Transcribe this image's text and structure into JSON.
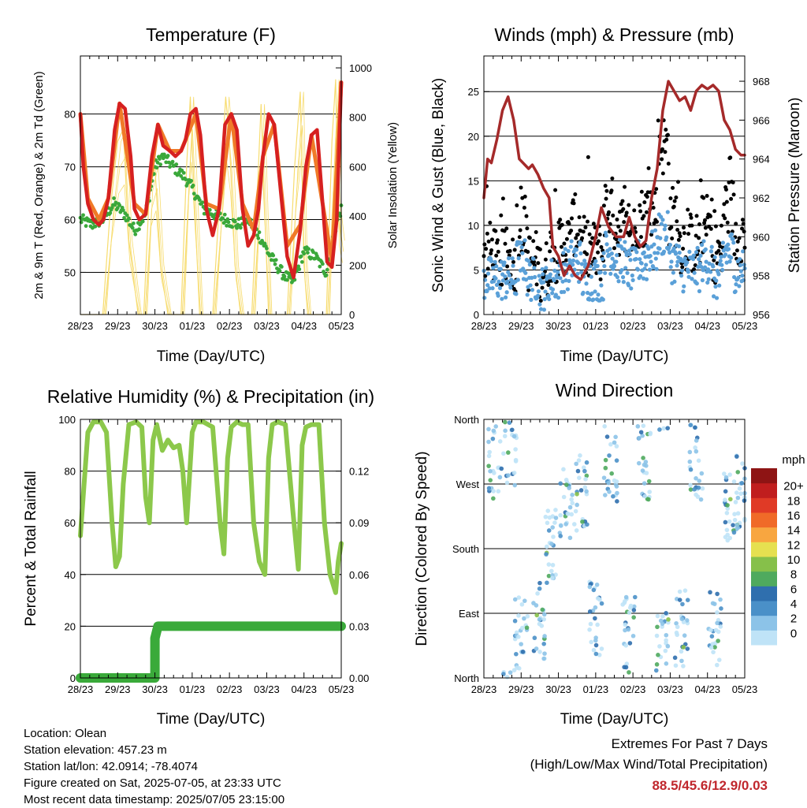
{
  "colors": {
    "temp2m": "#d62020",
    "temp9m": "#f07a28",
    "dewpoint": "#3aa83a",
    "solar": "#f7dc6f",
    "wind": "#5aa0d8",
    "gust": "#000000",
    "pressure": "#a52a2a",
    "rh": "#8cc84b",
    "precip": "#3aaa3a",
    "grid": "#000000",
    "extremes": "#c0272d"
  },
  "time_ticks": [
    "28/23",
    "29/23",
    "30/23",
    "01/23",
    "02/23",
    "03/23",
    "04/23",
    "05/23"
  ],
  "panels": {
    "temperature": {
      "title": "Temperature (F)",
      "xlabel": "Time (Day/UTC)",
      "ylabel_left": "2m & 9m T (Red, Orange) & 2m Td (Green)",
      "ylabel_right": "Solar Insolation (Yellow)",
      "yticks_left": [
        "50",
        "60",
        "70",
        "80"
      ],
      "yticks_right": [
        "0",
        "200",
        "400",
        "600",
        "800",
        "1000"
      ]
    },
    "winds": {
      "title": "Winds (mph) & Pressure (mb)",
      "xlabel": "Time (Day/UTC)",
      "ylabel_left": "Sonic Wind & Gust (Blue, Black)",
      "ylabel_right": "Station Pressure (Maroon)",
      "yticks_left": [
        "0",
        "5",
        "10",
        "15",
        "20",
        "25"
      ],
      "yticks_right": [
        "956",
        "958",
        "960",
        "962",
        "964",
        "966",
        "968"
      ]
    },
    "humidity": {
      "title": "Relative Humidity (%) & Precipitation (in)",
      "xlabel": "Time (Day/UTC)",
      "ylabel_left": "Percent & Total Rainfall",
      "yticks_left": [
        "0",
        "20",
        "40",
        "60",
        "80",
        "100"
      ],
      "yticks_right": [
        "0.00",
        "0.03",
        "0.06",
        "0.09",
        "0.12"
      ]
    },
    "direction": {
      "title": "Wind Direction",
      "xlabel": "Time (Day/UTC)",
      "ylabel_left": "Direction (Colored By Speed)",
      "yticks_left": [
        "North",
        "East",
        "South",
        "West",
        "North"
      ],
      "colorbar_title": "mph",
      "colorbar_labels": [
        "0",
        "2",
        "4",
        "6",
        "8",
        "10",
        "12",
        "14",
        "16",
        "18",
        "20+"
      ],
      "colorbar_colors": [
        "#bfe3f7",
        "#8cc3e8",
        "#4a90c8",
        "#2f6fae",
        "#4faa5e",
        "#86c04a",
        "#e6e050",
        "#f8a640",
        "#f06a28",
        "#e03a26",
        "#c01e1e",
        "#8e1414"
      ]
    }
  },
  "footer": {
    "location": "Location: Olean",
    "elevation": "Station elevation: 457.23 m",
    "latlon": "Station lat/lon: 42.0914; -78.4074",
    "created": "Figure created on Sat, 2025-07-05, at 23:33 UTC",
    "latest": "Most recent data timestamp: 2025/07/05 23:15:00"
  },
  "extremes": {
    "title": "Extremes For Past 7 Days",
    "subtitle": "(High/Low/Max Wind/Total Precipitation)",
    "values": "88.5/45.6/12.9/0.03"
  },
  "chart_data": [
    {
      "type": "line",
      "x_unit": "day",
      "xlim": [
        0,
        7
      ],
      "ylim": [
        42,
        91
      ],
      "y2lim": [
        0,
        1000
      ],
      "series": [
        {
          "key": "temp2m",
          "x": [
            0,
            0.08,
            0.2,
            0.35,
            0.5,
            0.62,
            0.75,
            0.92,
            1.05,
            1.2,
            1.35,
            1.45,
            1.58,
            1.75,
            1.92,
            2.08,
            2.22,
            2.4,
            2.55,
            2.7,
            2.82,
            2.95,
            3.1,
            3.22,
            3.38,
            3.55,
            3.72,
            3.88,
            4.05,
            4.2,
            4.35,
            4.5,
            4.65,
            4.78,
            4.9,
            5.05,
            5.2,
            5.38,
            5.55,
            5.72,
            5.9,
            6.05,
            6.2,
            6.35,
            6.5,
            6.62,
            6.75,
            6.88,
            7.0
          ],
          "y": [
            80,
            70,
            63,
            60,
            59,
            60,
            64,
            77,
            82,
            81,
            72,
            62,
            60,
            61,
            72,
            78,
            74,
            73,
            72,
            73,
            75,
            80,
            81,
            76,
            62,
            57,
            62,
            78,
            80,
            77,
            62,
            55,
            57,
            62,
            72,
            80,
            78,
            65,
            53,
            49,
            58,
            70,
            76,
            77,
            63,
            52,
            51,
            60,
            86
          ]
        },
        {
          "key": "temp9m",
          "x": [
            0,
            0.2,
            0.5,
            0.75,
            1.05,
            1.45,
            1.75,
            2.08,
            2.4,
            2.7,
            3.1,
            3.38,
            3.72,
            4.05,
            4.35,
            4.65,
            4.9,
            5.2,
            5.55,
            5.9,
            6.2,
            6.5,
            6.75,
            7.0
          ],
          "y": [
            80,
            64,
            60,
            64,
            82,
            63,
            61,
            78,
            73,
            73,
            80,
            63,
            62,
            80,
            63,
            58,
            72,
            78,
            55,
            59,
            76,
            63,
            52,
            86
          ]
        },
        {
          "key": "dewpoint",
          "x": [
            0,
            0.3,
            0.6,
            0.9,
            1.2,
            1.45,
            1.75,
            2.0,
            2.2,
            2.5,
            2.8,
            3.0,
            3.3,
            3.6,
            3.9,
            4.2,
            4.5,
            4.8,
            5.1,
            5.4,
            5.7,
            6.0,
            6.3,
            6.6,
            6.9,
            7.0
          ],
          "y": [
            60,
            59,
            60,
            63,
            61,
            58,
            61,
            70,
            72,
            70,
            68,
            66,
            62,
            61,
            60,
            59,
            60,
            57,
            53,
            50,
            48,
            54,
            53,
            50,
            60,
            62
          ]
        },
        {
          "key": "solar",
          "axis": "right",
          "x": [
            0,
            0.6,
            0.8,
            1.0,
            1.15,
            1.3,
            1.55,
            1.7,
            1.85,
            2.0,
            2.15,
            2.35,
            2.7,
            2.85,
            2.95,
            3.05,
            3.2,
            3.35,
            3.55,
            3.75,
            3.9,
            4.0,
            4.15,
            4.3,
            4.6,
            4.75,
            4.85,
            4.95,
            5.05,
            5.2,
            5.35,
            5.55,
            5.75,
            5.9,
            6.0,
            6.1,
            6.25,
            6.35,
            6.6,
            6.75,
            6.85,
            6.92,
            7.0
          ],
          "y": [
            0,
            0,
            420,
            700,
            750,
            300,
            0,
            0,
            500,
            600,
            200,
            0,
            0,
            600,
            880,
            500,
            0,
            0,
            0,
            500,
            880,
            700,
            200,
            0,
            0,
            500,
            850,
            400,
            0,
            0,
            0,
            0,
            600,
            900,
            200,
            0,
            0,
            0,
            0,
            700,
            950,
            400,
            300
          ]
        }
      ]
    },
    {
      "type": "line",
      "x_unit": "day",
      "xlim": [
        0,
        7
      ],
      "ylim": [
        0,
        29
      ],
      "y2lim": [
        956,
        969.3
      ],
      "series": [
        {
          "key": "pressure",
          "axis": "right",
          "x": [
            0,
            0.1,
            0.2,
            0.35,
            0.5,
            0.65,
            0.8,
            0.95,
            1.05,
            1.2,
            1.3,
            1.45,
            1.6,
            1.75,
            1.85,
            2.0,
            2.15,
            2.3,
            2.45,
            2.6,
            2.8,
            3.0,
            3.15,
            3.35,
            3.55,
            3.75,
            3.9,
            4.05,
            4.2,
            4.35,
            4.5,
            4.65,
            4.8,
            4.95,
            5.1,
            5.25,
            5.4,
            5.55,
            5.7,
            5.85,
            6.0,
            6.15,
            6.3,
            6.45,
            6.6,
            6.75,
            6.9,
            7.0
          ],
          "y": [
            962,
            964,
            963.8,
            965,
            966.5,
            967.2,
            966,
            964,
            963.8,
            963.5,
            963.7,
            963.2,
            962.5,
            962,
            959.5,
            959,
            958,
            958.5,
            958,
            957.8,
            958.5,
            960,
            961.5,
            960.5,
            960,
            960,
            961,
            960,
            959.5,
            959.8,
            962,
            963.5,
            966.5,
            968,
            967.5,
            967,
            967.2,
            966.5,
            967.5,
            967.8,
            967.6,
            967.8,
            967.5,
            966,
            965.5,
            964.5,
            964.2,
            964.2
          ]
        },
        {
          "key": "wind",
          "mean": [
            4,
            4,
            4,
            6,
            4,
            3,
            4,
            5,
            6,
            4,
            4,
            7,
            6,
            5,
            6,
            7,
            9,
            6,
            5,
            5,
            6,
            4,
            7,
            5
          ],
          "spread": 2.5
        },
        {
          "key": "gust",
          "mean": [
            7,
            6,
            6,
            10,
            6,
            5,
            7,
            8,
            10,
            7,
            7,
            12,
            10,
            9,
            11,
            12,
            19,
            11,
            8,
            8,
            10,
            7,
            12,
            9
          ],
          "spread": 3.5
        }
      ]
    },
    {
      "type": "line",
      "x_unit": "day",
      "xlim": [
        0,
        7
      ],
      "ylim": [
        0,
        100
      ],
      "y2lim": [
        0,
        0.15
      ],
      "series": [
        {
          "key": "rh",
          "x": [
            0,
            0.1,
            0.2,
            0.35,
            0.55,
            0.7,
            0.85,
            0.95,
            1.05,
            1.15,
            1.3,
            1.5,
            1.65,
            1.75,
            1.85,
            1.95,
            2.05,
            2.2,
            2.35,
            2.5,
            2.65,
            2.75,
            2.85,
            3.0,
            3.1,
            3.3,
            3.55,
            3.75,
            3.85,
            3.95,
            4.05,
            4.2,
            4.35,
            4.5,
            4.65,
            4.8,
            4.95,
            5.05,
            5.15,
            5.3,
            5.5,
            5.7,
            5.85,
            5.95,
            6.05,
            6.2,
            6.4,
            6.55,
            6.7,
            6.85,
            6.92,
            7.0
          ],
          "y": [
            55,
            75,
            95,
            99,
            99,
            95,
            60,
            43,
            47,
            75,
            98,
            99,
            97,
            70,
            60,
            92,
            98,
            88,
            92,
            89,
            90,
            80,
            60,
            95,
            99,
            99,
            97,
            60,
            48,
            85,
            97,
            99,
            98,
            98,
            60,
            45,
            40,
            85,
            98,
            99,
            98,
            65,
            42,
            90,
            97,
            98,
            98,
            60,
            40,
            33,
            45,
            52
          ]
        },
        {
          "key": "precip",
          "axis": "right",
          "x": [
            0,
            2.0,
            2.0,
            2.08,
            7.0
          ],
          "y": [
            0,
            0,
            0.023,
            0.03,
            0.03
          ]
        }
      ]
    },
    {
      "type": "scatter",
      "x_unit": "day",
      "xlim": [
        0,
        7
      ],
      "ylim": [
        0,
        360
      ],
      "y_ticks": [
        "North",
        "East",
        "South",
        "West",
        "North"
      ],
      "color_by": "speed (mph)",
      "clusters": [
        {
          "x": 0.3,
          "dir": 300
        },
        {
          "x": 0.7,
          "dir": 320
        },
        {
          "x": 1.0,
          "dir": 60
        },
        {
          "x": 1.5,
          "dir": 80
        },
        {
          "x": 1.8,
          "dir": 180
        },
        {
          "x": 2.2,
          "dir": 240
        },
        {
          "x": 2.6,
          "dir": 260
        },
        {
          "x": 3.0,
          "dir": 80
        },
        {
          "x": 3.4,
          "dir": 300
        },
        {
          "x": 3.9,
          "dir": 60
        },
        {
          "x": 4.3,
          "dir": 300
        },
        {
          "x": 4.8,
          "dir": 40
        },
        {
          "x": 5.3,
          "dir": 70
        },
        {
          "x": 5.7,
          "dir": 300
        },
        {
          "x": 6.2,
          "dir": 70
        },
        {
          "x": 6.6,
          "dir": 240
        },
        {
          "x": 6.9,
          "dir": 260
        }
      ]
    }
  ]
}
